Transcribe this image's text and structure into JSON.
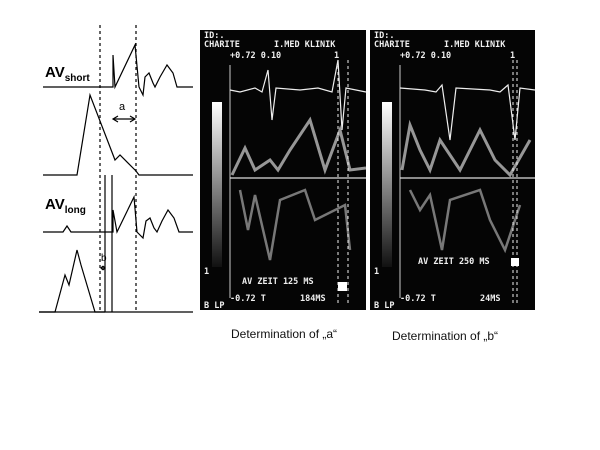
{
  "diagram": {
    "av_short": {
      "main": "AV",
      "sub": "short"
    },
    "av_long": {
      "main": "AV",
      "sub": "long"
    },
    "interval_a": "a",
    "interval_b": "b"
  },
  "panel_a": {
    "id_line": "ID:.",
    "header_left": "CHARITE",
    "header_right": "I.MED KLINIK",
    "scale_top": "+0.72 0.10",
    "marker": "1",
    "scale_index": "1",
    "av_zeit": "AV ZEIT 125 MS",
    "scale_bottom": "-0.72 T",
    "time_ms": "184MS",
    "mode": "B LP"
  },
  "panel_b": {
    "id_line": "ID:.",
    "header_left": "CHARITE",
    "header_right": "I.MED KLINIK",
    "scale_top": "+0.72 0.10",
    "marker": "1",
    "scale_index": "1",
    "av_zeit": "AV ZEIT 250 MS",
    "scale_bottom": "-0.72 T",
    "time_ms": "24MS",
    "mode": "B LP"
  },
  "captions": {
    "a": "Determination of „a“",
    "b": "Determination of „b“"
  }
}
